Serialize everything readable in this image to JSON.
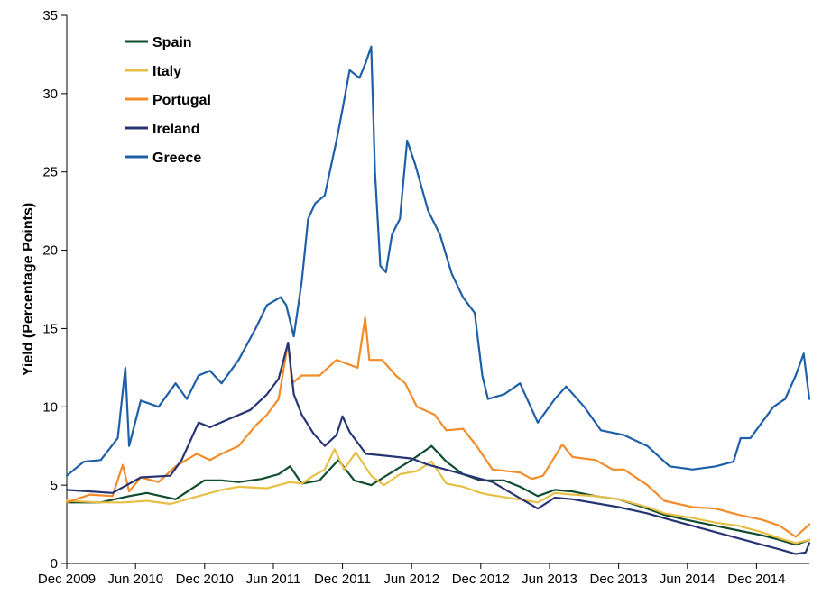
{
  "chart_data": {
    "type": "line",
    "title": "",
    "xlabel": "",
    "ylabel": "Yield (Percentage Points)",
    "ylim": [
      0,
      35
    ],
    "yticks": [
      "0",
      "5",
      "10",
      "15",
      "20",
      "25",
      "30",
      "35"
    ],
    "x_range": [
      "2009-12-01",
      "2015-04-20"
    ],
    "xticks": [
      {
        "date": "2009-12-01",
        "label": "Dec 2009"
      },
      {
        "date": "2010-06-01",
        "label": "Jun 2010"
      },
      {
        "date": "2010-12-01",
        "label": "Dec 2010"
      },
      {
        "date": "2011-06-01",
        "label": "Jun 2011"
      },
      {
        "date": "2011-12-01",
        "label": "Dec 2011"
      },
      {
        "date": "2012-06-01",
        "label": "Jun 2012"
      },
      {
        "date": "2012-12-01",
        "label": "Dec 2012"
      },
      {
        "date": "2013-06-01",
        "label": "Jun 2013"
      },
      {
        "date": "2013-12-01",
        "label": "Dec 2013"
      },
      {
        "date": "2014-06-01",
        "label": "Jun 2014"
      },
      {
        "date": "2014-12-01",
        "label": "Dec 2014"
      }
    ],
    "grid": false,
    "legend_position": "top-left",
    "series": [
      {
        "name": "Spain",
        "color": "#0f4d2e",
        "points": [
          [
            "2009-12-01",
            3.9
          ],
          [
            "2010-03-01",
            3.9
          ],
          [
            "2010-05-15",
            4.3
          ],
          [
            "2010-07-01",
            4.5
          ],
          [
            "2010-09-15",
            4.1
          ],
          [
            "2010-11-30",
            5.3
          ],
          [
            "2011-01-15",
            5.3
          ],
          [
            "2011-03-01",
            5.2
          ],
          [
            "2011-05-01",
            5.4
          ],
          [
            "2011-06-15",
            5.7
          ],
          [
            "2011-07-15",
            6.2
          ],
          [
            "2011-08-15",
            5.1
          ],
          [
            "2011-10-01",
            5.3
          ],
          [
            "2011-11-20",
            6.6
          ],
          [
            "2012-01-01",
            5.3
          ],
          [
            "2012-02-15",
            5.0
          ],
          [
            "2012-04-01",
            5.7
          ],
          [
            "2012-06-01",
            6.6
          ],
          [
            "2012-07-24",
            7.5
          ],
          [
            "2012-09-01",
            6.5
          ],
          [
            "2012-10-15",
            5.7
          ],
          [
            "2012-12-01",
            5.3
          ],
          [
            "2013-02-01",
            5.3
          ],
          [
            "2013-03-15",
            4.9
          ],
          [
            "2013-05-01",
            4.3
          ],
          [
            "2013-06-15",
            4.7
          ],
          [
            "2013-08-01",
            4.6
          ],
          [
            "2013-10-01",
            4.3
          ],
          [
            "2013-12-01",
            4.1
          ],
          [
            "2014-02-15",
            3.5
          ],
          [
            "2014-04-01",
            3.1
          ],
          [
            "2014-06-15",
            2.7
          ],
          [
            "2014-08-15",
            2.4
          ],
          [
            "2014-10-15",
            2.1
          ],
          [
            "2014-12-15",
            1.8
          ],
          [
            "2015-02-01",
            1.5
          ],
          [
            "2015-03-15",
            1.2
          ],
          [
            "2015-04-20",
            1.5
          ]
        ]
      },
      {
        "name": "Italy",
        "color": "#e8bf45",
        "points": [
          [
            "2009-12-01",
            4.0
          ],
          [
            "2010-03-01",
            3.9
          ],
          [
            "2010-05-01",
            3.9
          ],
          [
            "2010-07-01",
            4.0
          ],
          [
            "2010-09-01",
            3.8
          ],
          [
            "2010-11-15",
            4.3
          ],
          [
            "2011-01-15",
            4.7
          ],
          [
            "2011-03-01",
            4.9
          ],
          [
            "2011-05-15",
            4.8
          ],
          [
            "2011-07-15",
            5.2
          ],
          [
            "2011-08-15",
            5.1
          ],
          [
            "2011-09-15",
            5.6
          ],
          [
            "2011-10-15",
            6.0
          ],
          [
            "2011-11-10",
            7.3
          ],
          [
            "2011-12-05",
            6.0
          ],
          [
            "2012-01-05",
            7.1
          ],
          [
            "2012-02-15",
            5.6
          ],
          [
            "2012-03-20",
            5.0
          ],
          [
            "2012-05-01",
            5.7
          ],
          [
            "2012-06-15",
            5.9
          ],
          [
            "2012-07-24",
            6.5
          ],
          [
            "2012-09-01",
            5.1
          ],
          [
            "2012-10-15",
            4.9
          ],
          [
            "2012-12-01",
            4.5
          ],
          [
            "2012-12-20",
            4.4
          ],
          [
            "2013-05-01",
            3.9
          ],
          [
            "2013-06-15",
            4.5
          ],
          [
            "2013-08-01",
            4.4
          ],
          [
            "2013-10-01",
            4.3
          ],
          [
            "2013-12-01",
            4.1
          ],
          [
            "2014-02-15",
            3.6
          ],
          [
            "2014-04-01",
            3.2
          ],
          [
            "2014-06-15",
            2.9
          ],
          [
            "2014-08-15",
            2.6
          ],
          [
            "2014-10-15",
            2.4
          ],
          [
            "2014-12-15",
            2.0
          ],
          [
            "2015-02-01",
            1.6
          ],
          [
            "2015-03-15",
            1.3
          ],
          [
            "2015-04-20",
            1.5
          ]
        ]
      },
      {
        "name": "Portugal",
        "color": "#f28c28",
        "points": [
          [
            "2009-12-01",
            3.9
          ],
          [
            "2010-02-01",
            4.4
          ],
          [
            "2010-04-01",
            4.3
          ],
          [
            "2010-04-28",
            6.3
          ],
          [
            "2010-05-15",
            4.6
          ],
          [
            "2010-06-15",
            5.5
          ],
          [
            "2010-08-01",
            5.2
          ],
          [
            "2010-09-15",
            6.2
          ],
          [
            "2010-11-10",
            7.0
          ],
          [
            "2010-12-15",
            6.6
          ],
          [
            "2011-01-15",
            7.0
          ],
          [
            "2011-03-01",
            7.5
          ],
          [
            "2011-04-15",
            8.8
          ],
          [
            "2011-05-15",
            9.5
          ],
          [
            "2011-06-15",
            10.5
          ],
          [
            "2011-07-10",
            14.1
          ],
          [
            "2011-07-20",
            11.5
          ],
          [
            "2011-08-15",
            12.0
          ],
          [
            "2011-10-01",
            12.0
          ],
          [
            "2011-11-15",
            13.0
          ],
          [
            "2012-01-10",
            12.5
          ],
          [
            "2012-01-30",
            15.7
          ],
          [
            "2012-02-10",
            13.0
          ],
          [
            "2012-03-15",
            13.0
          ],
          [
            "2012-04-20",
            12.0
          ],
          [
            "2012-05-15",
            11.5
          ],
          [
            "2012-06-15",
            10.0
          ],
          [
            "2012-08-01",
            9.5
          ],
          [
            "2012-09-01",
            8.5
          ],
          [
            "2012-10-15",
            8.6
          ],
          [
            "2012-11-20",
            7.5
          ],
          [
            "2013-01-01",
            6.0
          ],
          [
            "2013-03-15",
            5.8
          ],
          [
            "2013-04-15",
            5.4
          ],
          [
            "2013-05-15",
            5.6
          ],
          [
            "2013-07-05",
            7.6
          ],
          [
            "2013-08-01",
            6.8
          ],
          [
            "2013-10-01",
            6.6
          ],
          [
            "2013-11-15",
            6.0
          ],
          [
            "2013-12-15",
            6.0
          ],
          [
            "2014-02-15",
            5.0
          ],
          [
            "2014-04-01",
            4.0
          ],
          [
            "2014-06-15",
            3.6
          ],
          [
            "2014-08-15",
            3.5
          ],
          [
            "2014-10-15",
            3.1
          ],
          [
            "2014-12-15",
            2.8
          ],
          [
            "2015-02-01",
            2.4
          ],
          [
            "2015-03-15",
            1.7
          ],
          [
            "2015-04-20",
            2.5
          ]
        ]
      },
      {
        "name": "Ireland",
        "color": "#283575",
        "points": [
          [
            "2009-12-01",
            4.7
          ],
          [
            "2010-02-01",
            4.6
          ],
          [
            "2010-04-01",
            4.5
          ],
          [
            "2010-06-15",
            5.5
          ],
          [
            "2010-09-01",
            5.6
          ],
          [
            "2010-10-01",
            6.6
          ],
          [
            "2010-11-15",
            9.0
          ],
          [
            "2010-12-15",
            8.7
          ],
          [
            "2011-02-01",
            9.2
          ],
          [
            "2011-04-01",
            9.8
          ],
          [
            "2011-05-15",
            10.8
          ],
          [
            "2011-06-15",
            11.8
          ],
          [
            "2011-07-10",
            14.1
          ],
          [
            "2011-07-25",
            10.8
          ],
          [
            "2011-08-15",
            9.5
          ],
          [
            "2011-09-15",
            8.3
          ],
          [
            "2011-10-15",
            7.5
          ],
          [
            "2011-11-15",
            8.2
          ],
          [
            "2011-12-01",
            9.4
          ],
          [
            "2011-12-20",
            8.4
          ],
          [
            "2012-02-01",
            7.0
          ],
          [
            "2012-03-15",
            6.9
          ],
          [
            "2012-06-01",
            6.7
          ],
          [
            "2012-07-15",
            6.3
          ],
          [
            "2013-01-01",
            5.2
          ],
          [
            "2013-05-01",
            3.5
          ],
          [
            "2013-06-15",
            4.2
          ],
          [
            "2013-08-01",
            4.1
          ],
          [
            "2013-12-01",
            3.6
          ],
          [
            "2014-02-15",
            3.2
          ],
          [
            "2014-04-15",
            2.8
          ],
          [
            "2014-06-15",
            2.4
          ],
          [
            "2014-08-15",
            2.0
          ],
          [
            "2014-10-15",
            1.6
          ],
          [
            "2014-12-15",
            1.2
          ],
          [
            "2015-02-01",
            0.9
          ],
          [
            "2015-03-15",
            0.6
          ],
          [
            "2015-04-10",
            0.7
          ],
          [
            "2015-04-20",
            1.3
          ]
        ]
      },
      {
        "name": "Greece",
        "color": "#1f5fa8",
        "points": [
          [
            "2009-12-01",
            5.6
          ],
          [
            "2010-01-15",
            6.5
          ],
          [
            "2010-03-01",
            6.6
          ],
          [
            "2010-04-15",
            8.0
          ],
          [
            "2010-05-05",
            12.5
          ],
          [
            "2010-05-15",
            7.5
          ],
          [
            "2010-06-15",
            10.4
          ],
          [
            "2010-08-01",
            10.0
          ],
          [
            "2010-09-15",
            11.5
          ],
          [
            "2010-10-15",
            10.5
          ],
          [
            "2010-11-15",
            12.0
          ],
          [
            "2010-12-15",
            12.3
          ],
          [
            "2011-01-15",
            11.5
          ],
          [
            "2011-03-01",
            13.0
          ],
          [
            "2011-04-15",
            15.0
          ],
          [
            "2011-05-15",
            16.5
          ],
          [
            "2011-06-20",
            17.0
          ],
          [
            "2011-07-05",
            16.5
          ],
          [
            "2011-07-25",
            14.5
          ],
          [
            "2011-08-15",
            18.0
          ],
          [
            "2011-09-01",
            22.0
          ],
          [
            "2011-09-20",
            23.0
          ],
          [
            "2011-10-15",
            23.5
          ],
          [
            "2011-11-15",
            27.0
          ],
          [
            "2011-12-01",
            29.0
          ],
          [
            "2011-12-20",
            31.5
          ],
          [
            "2012-01-15",
            31.0
          ],
          [
            "2012-02-01",
            32.0
          ],
          [
            "2012-02-15",
            33.0
          ],
          [
            "2012-02-25",
            25.0
          ],
          [
            "2012-03-10",
            19.0
          ],
          [
            "2012-03-25",
            18.6
          ],
          [
            "2012-04-10",
            21.0
          ],
          [
            "2012-05-01",
            22.0
          ],
          [
            "2012-05-20",
            27.0
          ],
          [
            "2012-06-10",
            25.5
          ],
          [
            "2012-07-15",
            22.5
          ],
          [
            "2012-08-15",
            21.0
          ],
          [
            "2012-09-15",
            18.5
          ],
          [
            "2012-10-15",
            17.0
          ],
          [
            "2012-11-15",
            16.0
          ],
          [
            "2012-12-05",
            12.0
          ],
          [
            "2012-12-20",
            10.5
          ],
          [
            "2013-02-01",
            10.8
          ],
          [
            "2013-03-15",
            11.5
          ],
          [
            "2013-05-01",
            9.0
          ],
          [
            "2013-06-15",
            10.5
          ],
          [
            "2013-07-15",
            11.3
          ],
          [
            "2013-09-01",
            10.0
          ],
          [
            "2013-10-15",
            8.5
          ],
          [
            "2013-12-15",
            8.2
          ],
          [
            "2014-02-15",
            7.5
          ],
          [
            "2014-04-15",
            6.2
          ],
          [
            "2014-06-15",
            6.0
          ],
          [
            "2014-08-15",
            6.2
          ],
          [
            "2014-10-01",
            6.5
          ],
          [
            "2014-10-20",
            8.0
          ],
          [
            "2014-11-15",
            8.0
          ],
          [
            "2014-12-15",
            9.0
          ],
          [
            "2015-01-15",
            10.0
          ],
          [
            "2015-02-15",
            10.5
          ],
          [
            "2015-03-15",
            12.0
          ],
          [
            "2015-04-05",
            13.4
          ],
          [
            "2015-04-20",
            10.5
          ]
        ]
      }
    ]
  }
}
